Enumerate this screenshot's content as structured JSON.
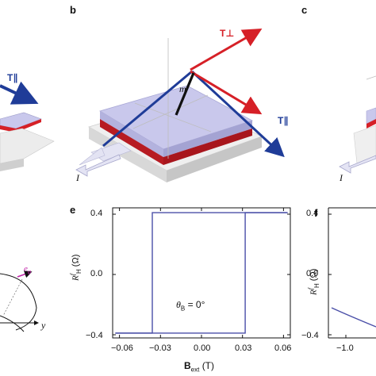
{
  "panels": {
    "b": "b",
    "c": "c",
    "e": "e",
    "f": "f"
  },
  "vectors": {
    "t_perp": "T⊥",
    "t_par_left": "T∥",
    "t_par_b": "T∥",
    "m": "m",
    "current_b": "I",
    "current_c": "I",
    "e_phi": "e",
    "e_phi_sub": "φ",
    "y_axis": "y"
  },
  "plot_e": {
    "yticks": [
      "0.4",
      "0.0",
      "−0.4"
    ],
    "xticks": [
      "−0.06",
      "−0.03",
      "0.00",
      "0.03",
      "0.06"
    ],
    "ylabel_main": "R",
    "ylabel_sup": "f",
    "ylabel_sub": "H",
    "ylabel_unit": "(Ω)",
    "xlabel_main": "B",
    "xlabel_sub": "ext",
    "xlabel_unit": "(T)",
    "annotation_theta": "θ",
    "annotation_sub": "B",
    "annotation_value": "= 0°"
  },
  "plot_f": {
    "yticks": [
      "0.4",
      "0.0",
      "−0.4"
    ],
    "xticks": [
      "−1.0"
    ],
    "ylabel_main": "R",
    "ylabel_sup": "f",
    "ylabel_sub": "H",
    "ylabel_unit": "(Ω)"
  },
  "colors": {
    "red": "#d62027",
    "blue": "#1f3c98",
    "plot_line": "#4a4fa8",
    "layer_top": "#c9c8ec",
    "layer_red": "#d62027",
    "slab": "#e6e6e6"
  },
  "chart_data": {
    "type": "line",
    "series": [
      {
        "x": [
          -0.063,
          -0.036,
          -0.036,
          0.063
        ],
        "y": [
          -0.37,
          -0.37,
          0.37,
          0.37
        ]
      },
      {
        "x": [
          0.063,
          0.032,
          0.032,
          -0.063
        ],
        "y": [
          0.37,
          0.37,
          -0.37,
          -0.37
        ]
      }
    ],
    "xlim": [
      -0.065,
      0.065
    ],
    "ylim": [
      -0.4,
      0.4
    ],
    "xlabel": "Bext (T)",
    "ylabel": "RfH (Ω)"
  }
}
